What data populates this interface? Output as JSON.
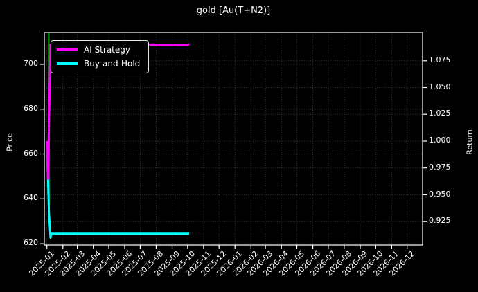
{
  "chart_data": {
    "type": "line",
    "title": "gold [Au(T+N2)]",
    "background_color": "#000000",
    "text_color": "#ffffff",
    "grid": true,
    "x_axis": {
      "domain": [
        "2024-12-27",
        "2026-12-31"
      ],
      "tick_rotation_deg": 45,
      "ticks": [
        {
          "label": "2025-01",
          "date": "2025-01-01"
        },
        {
          "label": "2025-02",
          "date": "2025-02-01"
        },
        {
          "label": "2025-03",
          "date": "2025-03-01"
        },
        {
          "label": "2025-04",
          "date": "2025-04-01"
        },
        {
          "label": "2025-05",
          "date": "2025-05-01"
        },
        {
          "label": "2025-06",
          "date": "2025-06-01"
        },
        {
          "label": "2025-07",
          "date": "2025-07-01"
        },
        {
          "label": "2025-08",
          "date": "2025-08-01"
        },
        {
          "label": "2025-09",
          "date": "2025-09-01"
        },
        {
          "label": "2025-10",
          "date": "2025-10-01"
        },
        {
          "label": "2025-11",
          "date": "2025-11-01"
        },
        {
          "label": "2025-12",
          "date": "2025-12-01"
        },
        {
          "label": "2026-01",
          "date": "2026-01-01"
        },
        {
          "label": "2026-02",
          "date": "2026-02-01"
        },
        {
          "label": "2026-03",
          "date": "2026-03-01"
        },
        {
          "label": "2026-04",
          "date": "2026-04-01"
        },
        {
          "label": "2026-05",
          "date": "2026-05-01"
        },
        {
          "label": "2026-06",
          "date": "2026-06-01"
        },
        {
          "label": "2026-07",
          "date": "2026-07-01"
        },
        {
          "label": "2026-08",
          "date": "2026-08-01"
        },
        {
          "label": "2026-09",
          "date": "2026-09-01"
        },
        {
          "label": "2026-10",
          "date": "2026-10-01"
        },
        {
          "label": "2026-11",
          "date": "2026-11-01"
        },
        {
          "label": "2026-12",
          "date": "2026-12-01"
        }
      ]
    },
    "left_axis": {
      "label": "Price",
      "range": [
        619.4,
        714.2
      ],
      "ticks": [
        {
          "label": "620",
          "value": 620
        },
        {
          "label": "640",
          "value": 640
        },
        {
          "label": "660",
          "value": 660
        },
        {
          "label": "680",
          "value": 680
        },
        {
          "label": "700",
          "value": 700
        }
      ]
    },
    "right_axis": {
      "label": "Return",
      "range": [
        0.9032,
        1.1013
      ],
      "ticks": [
        {
          "label": "0.925",
          "value": 0.925
        },
        {
          "label": "0.950",
          "value": 0.95
        },
        {
          "label": "0.975",
          "value": 0.975
        },
        {
          "label": "1.000",
          "value": 1.0
        },
        {
          "label": "1.025",
          "value": 1.025
        },
        {
          "label": "1.050",
          "value": 1.05
        },
        {
          "label": "1.075",
          "value": 1.075
        }
      ]
    },
    "series": [
      {
        "name": "Price",
        "color": "#008000",
        "axis": "left",
        "width": 2,
        "in_legend": false,
        "points": [
          [
            "2025-01-05",
            714.0
          ],
          [
            "2025-01-06",
            637.5
          ]
        ]
      },
      {
        "name": "Buy-and-Hold",
        "color": "#00ffff",
        "axis": "right",
        "width": 3,
        "in_legend": true,
        "points": [
          [
            "2025-01-01",
            1.0
          ],
          [
            "2025-01-05",
            0.933
          ],
          [
            "2025-01-08",
            0.91
          ],
          [
            "2025-01-10",
            0.9137
          ],
          [
            "2025-10-04",
            0.9137
          ]
        ]
      },
      {
        "name": "AI Strategy",
        "color": "#ff00ff",
        "axis": "right",
        "width": 3,
        "in_legend": true,
        "points": [
          [
            "2025-01-01",
            1.0
          ],
          [
            "2025-01-03",
            0.965
          ],
          [
            "2025-01-08",
            1.09
          ],
          [
            "2025-10-04",
            1.09
          ]
        ]
      }
    ],
    "legend": {
      "position": "upper-left",
      "items": [
        {
          "label": "AI Strategy",
          "color": "#ff00ff"
        },
        {
          "label": "Buy-and-Hold",
          "color": "#00ffff"
        }
      ]
    }
  }
}
